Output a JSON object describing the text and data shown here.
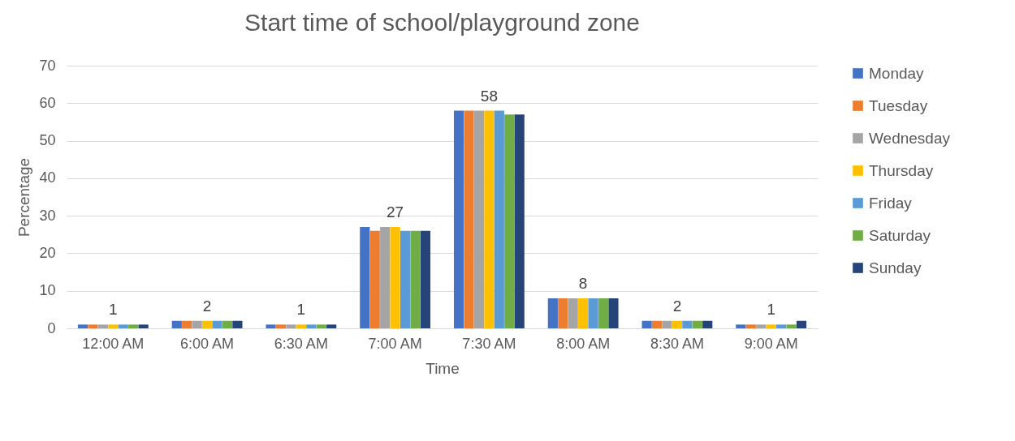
{
  "chart_data": {
    "type": "bar",
    "title": "Start time of school/playground zone",
    "xlabel": "Time",
    "ylabel": "Percentage",
    "categories": [
      "12:00 AM",
      "6:00 AM",
      "6:30 AM",
      "7:00 AM",
      "7:30 AM",
      "8:00 AM",
      "8:30 AM",
      "9:00 AM"
    ],
    "series": [
      {
        "name": "Monday",
        "color": "#4472c4",
        "values": [
          1,
          2,
          1,
          27,
          58,
          8,
          2,
          1
        ]
      },
      {
        "name": "Tuesday",
        "color": "#ed7d31",
        "values": [
          1,
          2,
          1,
          26,
          58,
          8,
          2,
          1
        ]
      },
      {
        "name": "Wednesday",
        "color": "#a5a5a5",
        "values": [
          1,
          2,
          1,
          27,
          58,
          8,
          2,
          1
        ]
      },
      {
        "name": "Thursday",
        "color": "#ffc000",
        "values": [
          1,
          2,
          1,
          27,
          58,
          8,
          2,
          1
        ],
        "value_labels": [
          "1",
          "2",
          "1",
          "27",
          "58",
          "8",
          "2",
          "1"
        ]
      },
      {
        "name": "Friday",
        "color": "#5b9bd5",
        "values": [
          1,
          2,
          1,
          26,
          58,
          8,
          2,
          1
        ]
      },
      {
        "name": "Saturday",
        "color": "#70ad47",
        "values": [
          1,
          2,
          1,
          26,
          57,
          8,
          2,
          1
        ]
      },
      {
        "name": "Sunday",
        "color": "#264478",
        "values": [
          1,
          2,
          1,
          26,
          57,
          8,
          2,
          2
        ]
      }
    ],
    "ylim": [
      0,
      70
    ],
    "yticks": [
      0,
      10,
      20,
      30,
      40,
      50,
      60,
      70
    ],
    "grid": "y",
    "legend": "right"
  }
}
